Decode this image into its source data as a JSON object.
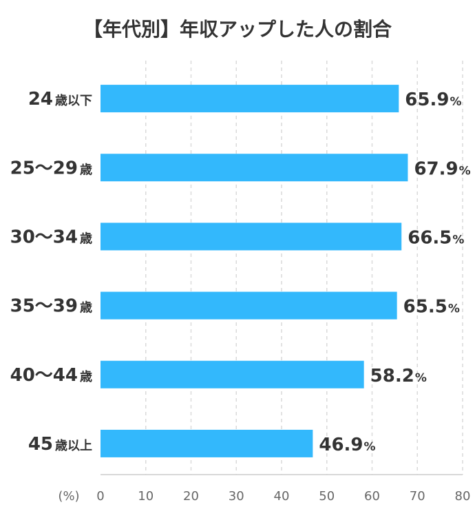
{
  "chart_data": {
    "type": "bar",
    "orientation": "horizontal",
    "title": "【年代別】年収アップした人の割合",
    "categories": [
      "24歳以下",
      "25～29歳",
      "30～34歳",
      "35～39歳",
      "40～44歳",
      "45歳以上"
    ],
    "category_parts": [
      {
        "num": "24",
        "text": "歳以下"
      },
      {
        "num": "25～29",
        "text": "歳"
      },
      {
        "num": "30～34",
        "text": "歳"
      },
      {
        "num": "35～39",
        "text": "歳"
      },
      {
        "num": "40～44",
        "text": "歳"
      },
      {
        "num": "45",
        "text": "歳以上"
      }
    ],
    "values": [
      65.9,
      67.9,
      66.5,
      65.5,
      58.2,
      46.9
    ],
    "value_labels": [
      "65.9",
      "67.9",
      "66.5",
      "65.5",
      "58.2",
      "46.9"
    ],
    "value_unit": "%",
    "x_unit_label": "(%)",
    "xlim": [
      0,
      80
    ],
    "xticks": [
      "0",
      "10",
      "20",
      "30",
      "40",
      "50",
      "60",
      "70",
      "80"
    ],
    "grid": true,
    "bar_color": "#33b8fc"
  }
}
